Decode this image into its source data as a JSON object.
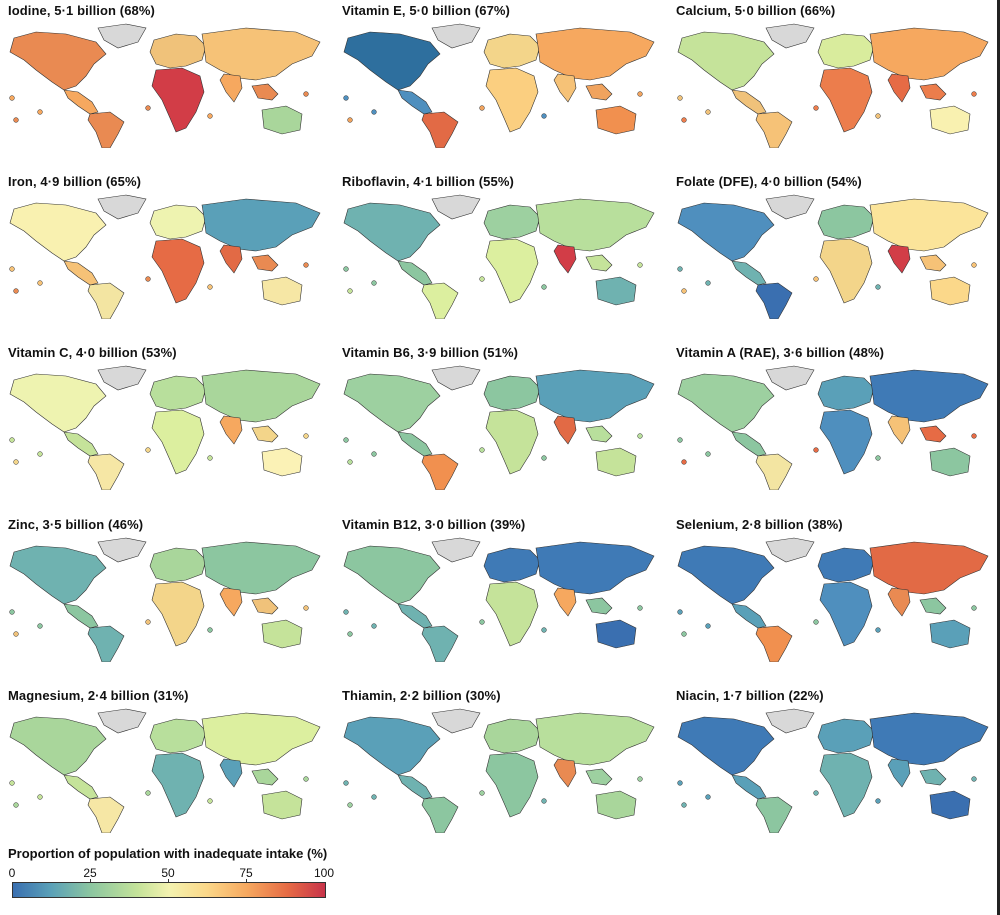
{
  "panels": [
    {
      "title": "Iodine, 5·1 billion (68%)",
      "colors": {
        "na": "#e98a52",
        "ca": "#f6a85f",
        "gl": "#d8d8d8",
        "sa": "#e98a52",
        "eu": "#f0c27a",
        "af": "#d23d47",
        "as": "#f6c277",
        "in": "#f6a85f",
        "au": "#a9d69b",
        "is": "#e98a52"
      }
    },
    {
      "title": "Vitamin E, 5·0 billion (67%)",
      "colors": {
        "na": "#2e6f9e",
        "ca": "#4f8fbe",
        "gl": "#d8d8d8",
        "sa": "#e26a45",
        "eu": "#f3d58a",
        "af": "#fbcf80",
        "as": "#f6a85f",
        "in": "#f6c277",
        "au": "#f1904f",
        "is": "#f0a35e"
      }
    },
    {
      "title": "Calcium, 5·0 billion (66%)",
      "colors": {
        "na": "#c5e39a",
        "ca": "#f0c27a",
        "gl": "#d8d8d8",
        "sa": "#f6c277",
        "eu": "#d9ec9d",
        "af": "#ec7d4c",
        "as": "#f6a85f",
        "in": "#e66b45",
        "au": "#f9f1b0",
        "is": "#ec7d4c"
      }
    },
    {
      "title": "Iron, 4·9 billion (65%)",
      "colors": {
        "na": "#f9f1b0",
        "ca": "#f6c277",
        "gl": "#d8d8d8",
        "sa": "#f3e5a2",
        "eu": "#eef3b0",
        "af": "#e66b45",
        "as": "#5aa0b8",
        "in": "#e26a45",
        "au": "#f6e7a5",
        "is": "#e98a52"
      }
    },
    {
      "title": "Riboflavin, 4·1 billion (55%)",
      "colors": {
        "na": "#6fb2b0",
        "ca": "#8cc6a0",
        "gl": "#d8d8d8",
        "sa": "#dcef9f",
        "eu": "#9dd0a0",
        "af": "#dcef9f",
        "as": "#b8df9c",
        "in": "#d23d47",
        "au": "#6fb2b0",
        "is": "#c5e39a"
      }
    },
    {
      "title": "Folate (DFE), 4·0 billion (54%)",
      "colors": {
        "na": "#4f8fbe",
        "ca": "#6fb2b0",
        "gl": "#d8d8d8",
        "sa": "#3a6fb0",
        "eu": "#8cc6a0",
        "af": "#f3d58a",
        "as": "#fbe49a",
        "in": "#d23d47",
        "au": "#fbd88a",
        "is": "#f6c277"
      }
    },
    {
      "title": "Vitamin C, 4·0 billion (53%)",
      "colors": {
        "na": "#eef3b0",
        "ca": "#c5e39a",
        "gl": "#d8d8d8",
        "sa": "#f6e7a5",
        "eu": "#b8df9c",
        "af": "#dcef9f",
        "as": "#a9d69b",
        "in": "#f6a85f",
        "au": "#fbf2b6",
        "is": "#f3d58a"
      }
    },
    {
      "title": "Vitamin B6, 3·9 billion (51%)",
      "colors": {
        "na": "#9dd0a0",
        "ca": "#8cc6a0",
        "gl": "#d8d8d8",
        "sa": "#f1904f",
        "eu": "#8cc6a0",
        "af": "#c5e39a",
        "as": "#5aa0b8",
        "in": "#e26a45",
        "au": "#c5e39a",
        "is": "#b8df9c"
      }
    },
    {
      "title": "Vitamin A (RAE), 3·6 billion (48%)",
      "colors": {
        "na": "#9dd0a0",
        "ca": "#8cc6a0",
        "gl": "#d8d8d8",
        "sa": "#f3e5a2",
        "eu": "#5aa0b8",
        "af": "#4f8fbe",
        "as": "#3f7ab6",
        "in": "#f6c277",
        "au": "#8cc6a0",
        "is": "#e66b45"
      }
    },
    {
      "title": "Zinc, 3·5 billion (46%)",
      "colors": {
        "na": "#6fb2b0",
        "ca": "#8cc6a0",
        "gl": "#d8d8d8",
        "sa": "#6fb2b0",
        "eu": "#a9d69b",
        "af": "#f3d58a",
        "as": "#8cc6a0",
        "in": "#f6a85f",
        "au": "#c5e39a",
        "is": "#f0c27a"
      }
    },
    {
      "title": "Vitamin B12, 3·0 billion (39%)",
      "colors": {
        "na": "#8cc6a0",
        "ca": "#6fb2b0",
        "gl": "#d8d8d8",
        "sa": "#6fb2b0",
        "eu": "#3f7ab6",
        "af": "#c5e39a",
        "as": "#3f7ab6",
        "in": "#f6a85f",
        "au": "#3a6fb0",
        "is": "#8cc6a0"
      }
    },
    {
      "title": "Selenium, 2·8 billion (38%)",
      "colors": {
        "na": "#3f7ab6",
        "ca": "#5aa0b8",
        "gl": "#d8d8d8",
        "sa": "#f1904f",
        "eu": "#3f7ab6",
        "af": "#4f8fbe",
        "as": "#e26a45",
        "in": "#e98a52",
        "au": "#5aa0b8",
        "is": "#8cc6a0"
      }
    },
    {
      "title": "Magnesium, 2·4 billion (31%)",
      "colors": {
        "na": "#a9d69b",
        "ca": "#c5e39a",
        "gl": "#d8d8d8",
        "sa": "#f6e7a5",
        "eu": "#b8df9c",
        "af": "#6fb2b0",
        "as": "#dcef9f",
        "in": "#5aa0b8",
        "au": "#c5e39a",
        "is": "#a9d69b"
      }
    },
    {
      "title": "Thiamin, 2·2 billion (30%)",
      "colors": {
        "na": "#5aa0b8",
        "ca": "#6fb2b0",
        "gl": "#d8d8d8",
        "sa": "#8cc6a0",
        "eu": "#a9d69b",
        "af": "#8cc6a0",
        "as": "#b8df9c",
        "in": "#e98a52",
        "au": "#a9d69b",
        "is": "#9dd0a0"
      }
    },
    {
      "title": "Niacin, 1·7 billion (22%)",
      "colors": {
        "na": "#3f7ab6",
        "ca": "#5aa0b8",
        "gl": "#d8d8d8",
        "sa": "#8cc6a0",
        "eu": "#5aa0b8",
        "af": "#6fb2b0",
        "as": "#3f7ab6",
        "in": "#5aa0b8",
        "au": "#3a6fb0",
        "is": "#6fb2b0"
      }
    }
  ],
  "legend": {
    "title": "Proportion of population with inadequate intake (%)",
    "ticks": [
      "0",
      "25",
      "50",
      "75",
      "100"
    ]
  }
}
